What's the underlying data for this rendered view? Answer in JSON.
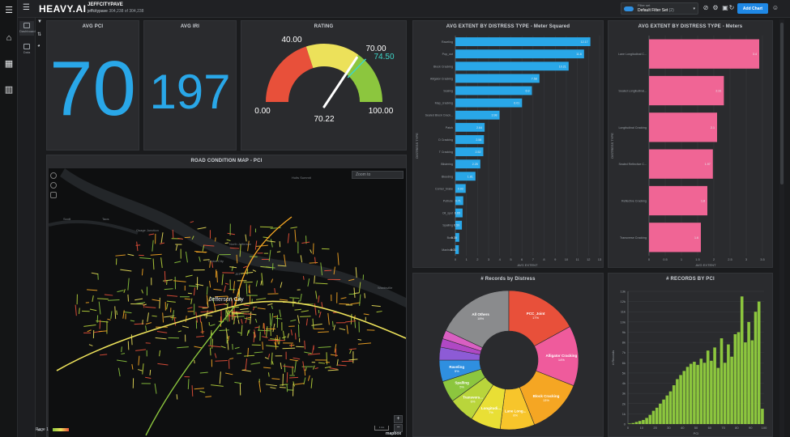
{
  "header": {
    "logo": "HEAVY.AI",
    "dashboard_name": "JEFFCITYPAVE",
    "table_name": "jeffcitypave",
    "record_count": "304,238 of 304,238",
    "filter_set_label": "Filter set",
    "filter_set_value": "Default Filter Set",
    "filter_set_count": "(2)",
    "add_chart_label": "Add Chart"
  },
  "sidebar": {
    "tabs": [
      {
        "label": "Dashboard"
      },
      {
        "label": "Data"
      }
    ]
  },
  "kpis": {
    "avg_pci": {
      "title": "AVG PCI",
      "value": "70"
    },
    "avg_iri": {
      "title": "AVG IRI",
      "value": "197"
    }
  },
  "gauge": {
    "title": "RATING",
    "min_label": "0.00",
    "max_label": "100.00",
    "t1_label": "40.00",
    "t2_label": "70.00",
    "target_label": "74.50",
    "value_label": "70.22",
    "value": 70.22,
    "min": 0,
    "max": 100,
    "t1": 40,
    "t2": 70,
    "target": 74.5,
    "colors": {
      "low": "#e8503a",
      "mid": "#ece15a",
      "high": "#8cc63e",
      "target": "#3dd6c8"
    }
  },
  "map": {
    "title": "ROAD CONDITION MAP - PCI",
    "zoom_placeholder": "Zoom to",
    "city_label": "Jefferson City",
    "labels": [
      "Holts Summit",
      "North Jefferson",
      "Cedar City",
      "JEF",
      "Wardsville",
      "Scott",
      "Osage Junction",
      "Taos"
    ],
    "page_label": "Page 1",
    "scale_label": "1 km",
    "attribution": "mapbox"
  },
  "chart_data": [
    {
      "type": "bar",
      "orientation": "horizontal",
      "title": "AVG EXTENT BY DISTRESS TYPE - Meter Squared",
      "xlabel": "AVG EXTENT",
      "ylabel": "DISTRESS TYPE",
      "xlim": [
        0,
        13
      ],
      "xticks": [
        "0",
        "1",
        "2",
        "3",
        "4",
        "5",
        "6",
        "7",
        "8",
        "9",
        "10",
        "11",
        "12",
        "13"
      ],
      "color": "#29a7e8",
      "categories": [
        "Raveling",
        "Pop_out",
        "Block Cracking",
        "Alligator Cracking",
        "Scaling",
        "Map_cracking",
        "Sealed Block Crack...",
        "Patch",
        "D Cracking",
        "T Cracking",
        "Blistering",
        "Bleeding",
        "Corner_brake",
        "Pothole",
        "Oil_spot",
        "Spalling",
        "Bum",
        "Manhole"
      ],
      "values": [
        12.17,
        11.6,
        10.21,
        7.58,
        6.9,
        6.01,
        3.98,
        2.64,
        2.58,
        2.52,
        2.25,
        1.81,
        0.93,
        0.71,
        0.65,
        0.59,
        0.35,
        0.31
      ],
      "value_labels": [
        "12.17",
        "11.6",
        "10.21",
        "7.58",
        "6.9",
        "6.01",
        "3.98",
        "2.64",
        "2.58",
        "2.52",
        "2.25",
        "1.81",
        "0.93",
        "0.71",
        "0.65",
        "0.59",
        "0.35",
        "0.31"
      ]
    },
    {
      "type": "bar",
      "orientation": "horizontal",
      "title": "AVG EXTENT BY DISTRESS TYPE - Meters",
      "xlabel": "AVG EXTENT",
      "ylabel": "DISTRESS TYPE",
      "xlim": [
        0,
        3.5
      ],
      "xticks": [
        "0",
        "0.5",
        "1",
        "1.5",
        "2",
        "2.5",
        "3",
        "3.5"
      ],
      "color": "#f06595",
      "categories": [
        "Lane Longitudinal C...",
        "Sealed Longitudinal...",
        "Longitudinal Cracking",
        "Sealed Reflective C...",
        "Reflective Cracking",
        "Transverse Cracking"
      ],
      "values": [
        3.4,
        2.31,
        2.1,
        1.97,
        1.8,
        1.6
      ],
      "value_labels": [
        "3.4",
        "2.31",
        "2.1",
        "1.97",
        "1.8",
        "1.6"
      ]
    },
    {
      "type": "pie",
      "donut": true,
      "title": "# Records by Distress",
      "slices": [
        {
          "label": "All Others",
          "value": 18,
          "pct": "18%",
          "color": "#8a8b8d"
        },
        {
          "label": "PCC_Joint",
          "value": 17,
          "pct": "17%",
          "color": "#e8503a"
        },
        {
          "label": "Alligator Cracking",
          "value": 14,
          "pct": "14%",
          "color": "#ef5b9c"
        },
        {
          "label": "Block Cracking",
          "value": 13,
          "pct": "13%",
          "color": "#f5a623"
        },
        {
          "label": "Lane Long...",
          "value": 8,
          "pct": "8%",
          "color": "#f7c52b"
        },
        {
          "label": "Longitudi...",
          "value": 7,
          "pct": "7%",
          "color": "#e9df35"
        },
        {
          "label": "Transvers...",
          "value": 6,
          "pct": "6%",
          "color": "#b9d53b"
        },
        {
          "label": "Spalling",
          "value": 5,
          "pct": "5%",
          "color": "#8cc63e"
        },
        {
          "label": "Raveling",
          "value": 5,
          "pct": "5%",
          "color": "#2f8fe0"
        },
        {
          "label": "",
          "value": 3,
          "pct": "",
          "color": "#8d5bd6"
        },
        {
          "label": "",
          "value": 2,
          "pct": "",
          "color": "#b048c4"
        },
        {
          "label": "",
          "value": 2,
          "pct": "",
          "color": "#d95fc2"
        }
      ]
    },
    {
      "type": "bar",
      "title": "# RECORDS BY PCI",
      "xlabel": "PCI",
      "ylabel": "# Records",
      "xlim": [
        0,
        100
      ],
      "ylim": [
        0,
        13000
      ],
      "yticks": [
        "0",
        "1k",
        "2k",
        "3k",
        "4k",
        "5k",
        "6k",
        "7k",
        "8k",
        "9k",
        "10k",
        "11k",
        "12k",
        "13k"
      ],
      "xticks": [
        "0",
        "10",
        "20",
        "30",
        "40",
        "50",
        "60",
        "70",
        "80",
        "90",
        "100"
      ],
      "color": "#8cc63e",
      "values": [
        50,
        100,
        200,
        300,
        400,
        600,
        900,
        1300,
        1600,
        2000,
        2400,
        2800,
        3200,
        3800,
        4400,
        4800,
        5200,
        5600,
        5900,
        6100,
        5800,
        6400,
        6000,
        7200,
        6200,
        7500,
        5500,
        8400,
        6000,
        7800,
        6600,
        8800,
        9000,
        12500,
        8000,
        10000,
        8200,
        11000,
        12000,
        1500
      ]
    }
  ]
}
